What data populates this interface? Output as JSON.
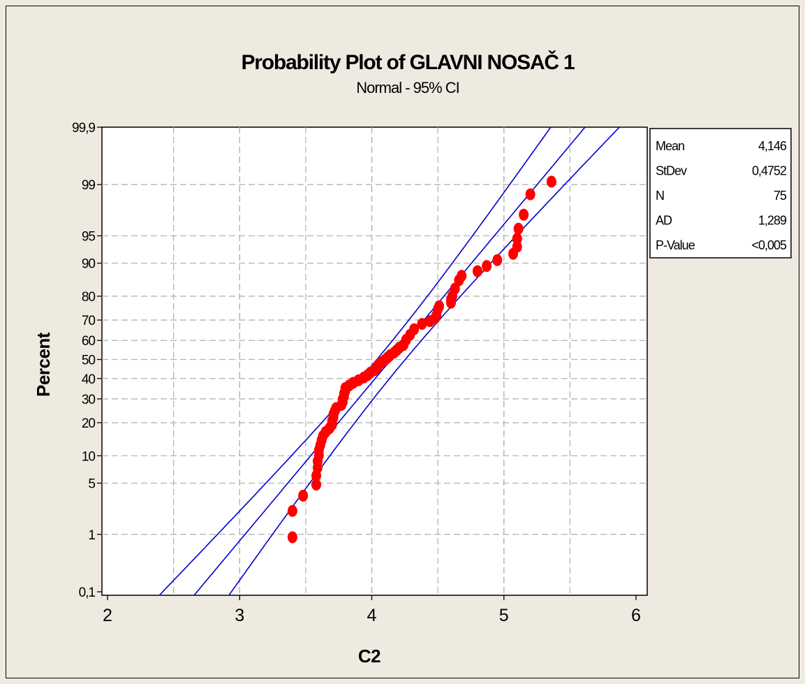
{
  "chart_data": {
    "type": "scatter",
    "subtype": "normal probability plot",
    "title": "Probability Plot of GLAVNI NOSAČ 1",
    "subtitle": "Normal - 95% CI",
    "xlabel": "C2",
    "ylabel": "Percent",
    "xlim": [
      2,
      6
    ],
    "x_ticks": [
      "2",
      "3",
      "4",
      "5",
      "6"
    ],
    "x_tick_values": [
      2,
      3,
      4,
      5,
      6
    ],
    "y_ticks": [
      "0,1",
      "1",
      "5",
      "10",
      "20",
      "30",
      "40",
      "50",
      "60",
      "70",
      "80",
      "90",
      "95",
      "99",
      "99,9"
    ],
    "y_tick_values": [
      0.1,
      1,
      5,
      10,
      20,
      30,
      40,
      50,
      60,
      70,
      80,
      90,
      95,
      99,
      99.9
    ],
    "grid": true,
    "scale": "normal probability",
    "point_color": "#ff0000",
    "line_color": "#0000cc",
    "fit": {
      "mean": 4.146,
      "stdev": 0.4752
    },
    "x": [
      3.4,
      3.4,
      3.48,
      3.58,
      3.58,
      3.59,
      3.59,
      3.6,
      3.6,
      3.61,
      3.62,
      3.63,
      3.65,
      3.68,
      3.7,
      3.7,
      3.71,
      3.71,
      3.72,
      3.73,
      3.77,
      3.78,
      3.78,
      3.79,
      3.79,
      3.8,
      3.8,
      3.83,
      3.86,
      3.9,
      3.94,
      3.97,
      3.99,
      4.02,
      4.04,
      4.05,
      4.07,
      4.1,
      4.12,
      4.14,
      4.17,
      4.19,
      4.21,
      4.24,
      4.26,
      4.29,
      4.32,
      4.38,
      4.44,
      4.48,
      4.49,
      4.5,
      4.51,
      4.6,
      4.6,
      4.61,
      4.63,
      4.66,
      4.68,
      4.8,
      4.87,
      4.95,
      5.07,
      5.1,
      5.1,
      5.11,
      5.15,
      5.2,
      5.36
    ],
    "y": [
      0.9,
      2.2,
      3.5,
      4.8,
      6.1,
      7.5,
      8.8,
      10.1,
      11.4,
      12.7,
      14.1,
      15.4,
      16.7,
      18.0,
      19.3,
      20.7,
      22.0,
      23.3,
      24.6,
      25.9,
      27.3,
      28.6,
      29.9,
      31.2,
      32.5,
      33.9,
      35.2,
      36.5,
      37.8,
      39.1,
      40.5,
      41.8,
      43.1,
      44.4,
      45.7,
      47.1,
      48.4,
      49.7,
      51.0,
      52.3,
      53.7,
      55.0,
      56.3,
      57.6,
      60.3,
      62.9,
      65.6,
      68.2,
      69.5,
      70.9,
      72.2,
      74.8,
      76.1,
      77.5,
      78.8,
      80.1,
      82.7,
      85.4,
      86.7,
      88.0,
      89.3,
      90.7,
      92.0,
      93.3,
      94.6,
      95.9,
      97.3,
      98.6,
      99.1
    ],
    "stats_box": [
      {
        "label": "Mean",
        "value": "4,146"
      },
      {
        "label": "StDev",
        "value": "0,4752"
      },
      {
        "label": "N",
        "value": "75"
      },
      {
        "label": "AD",
        "value": "1,289"
      },
      {
        "label": "P-Value",
        "value": "<0,005"
      }
    ]
  }
}
